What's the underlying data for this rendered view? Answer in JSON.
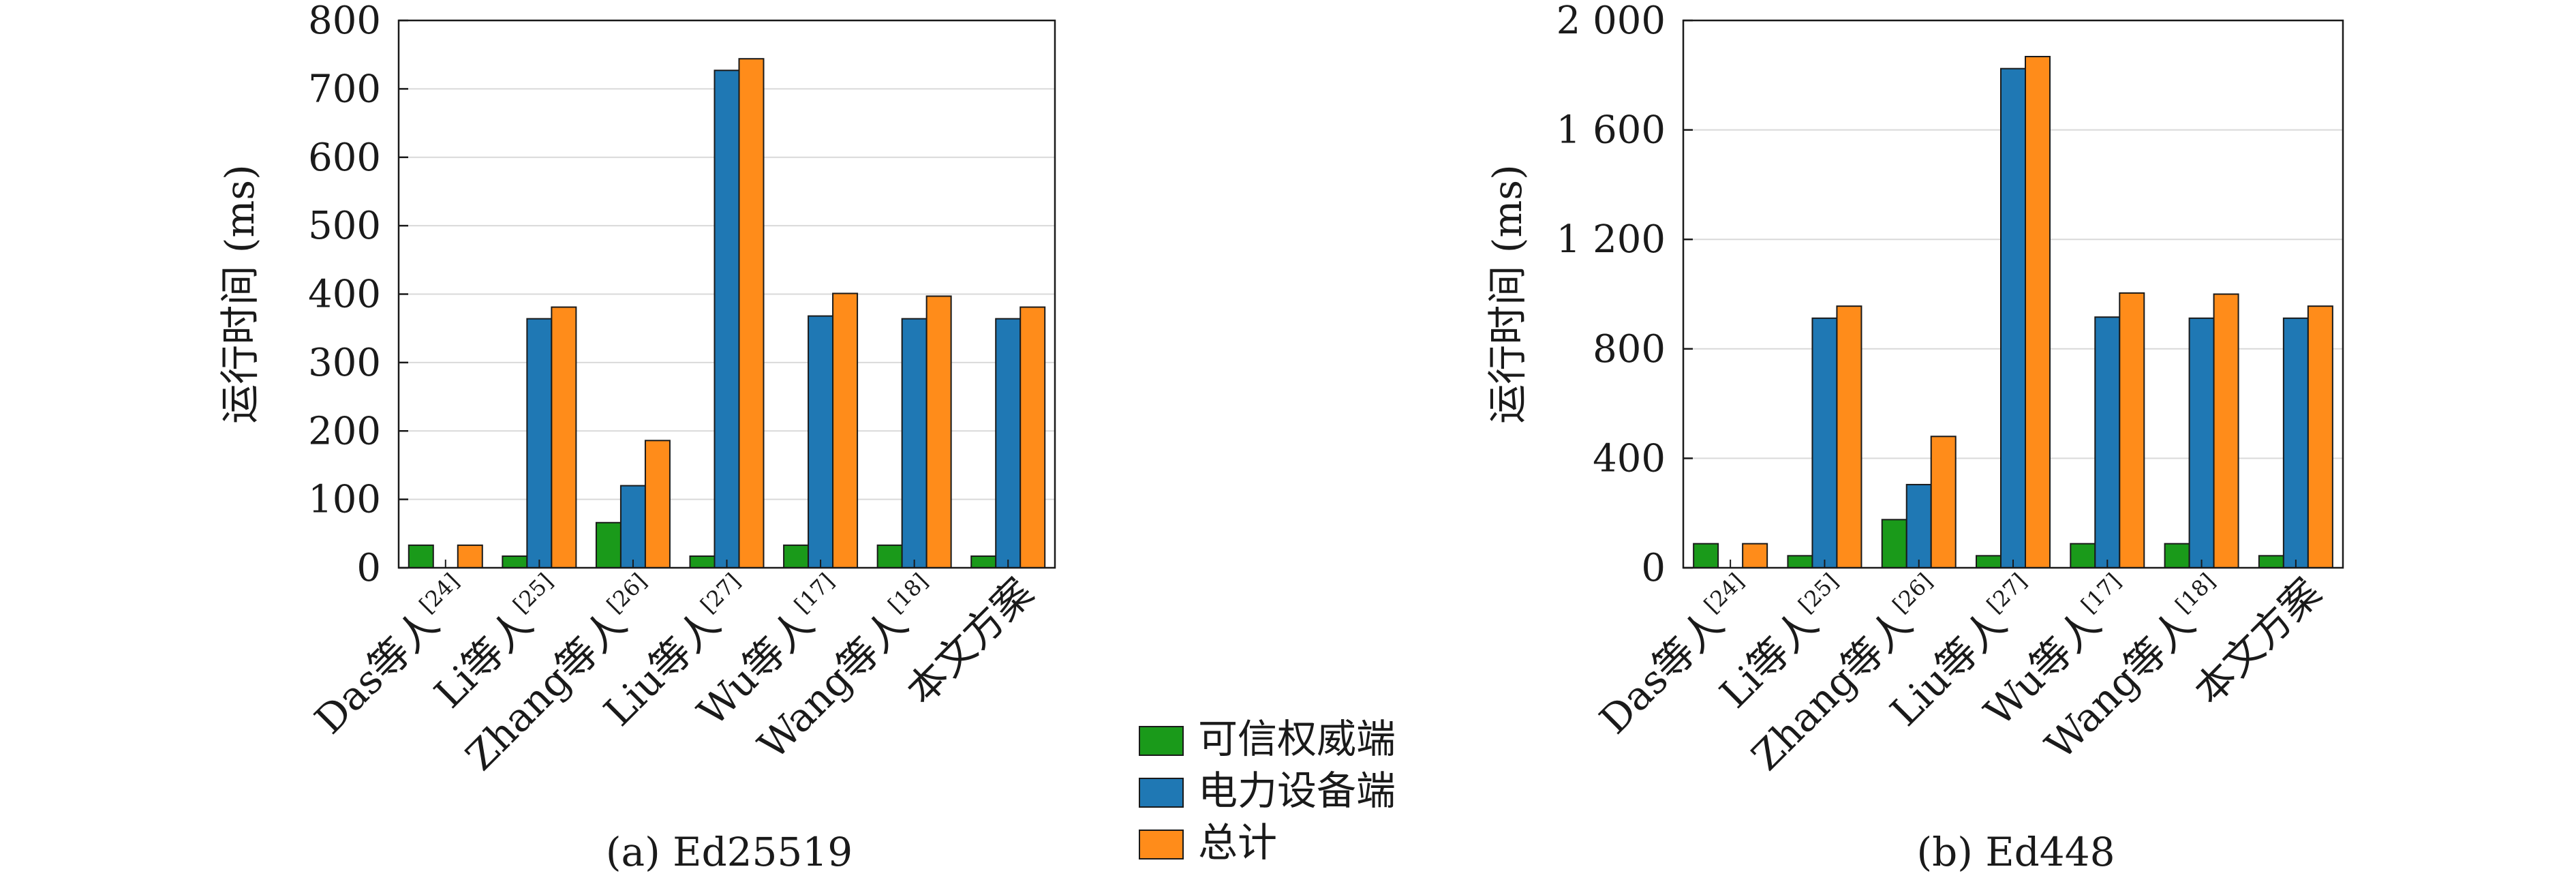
{
  "chart_data": [
    {
      "type": "bar",
      "caption": "(a) Ed25519",
      "ylabel": "运行时间 (ms)",
      "ylim": [
        0,
        800
      ],
      "yticks": [
        0,
        100,
        200,
        300,
        400,
        500,
        600,
        700,
        800
      ],
      "ytick_labels": [
        "0",
        "100",
        "200",
        "300",
        "400",
        "500",
        "600",
        "700",
        "800"
      ],
      "grid": true,
      "categories": [
        {
          "label": "Das等人",
          "ref": "[24]"
        },
        {
          "label": "Li等人",
          "ref": "[25]"
        },
        {
          "label": "Zhang等人",
          "ref": "[26]"
        },
        {
          "label": "Liu等人",
          "ref": "[27]"
        },
        {
          "label": "Wu等人",
          "ref": "[17]"
        },
        {
          "label": "Wang等人",
          "ref": "[18]"
        },
        {
          "label": "本文方案",
          "ref": ""
        }
      ],
      "series": [
        {
          "name": "可信权威端",
          "color": "#1a9a1a",
          "values": [
            33,
            17,
            66,
            17,
            33,
            33,
            17
          ]
        },
        {
          "name": "电力设备端",
          "color": "#1f78b4",
          "values": [
            0,
            364,
            120,
            727,
            368,
            364,
            364
          ]
        },
        {
          "name": "总计",
          "color": "#ff8c1a",
          "values": [
            33,
            381,
            186,
            744,
            401,
            397,
            381
          ]
        }
      ]
    },
    {
      "type": "bar",
      "caption": "(b) Ed448",
      "ylabel": "运行时间 (ms)",
      "ylim": [
        0,
        2000
      ],
      "yticks": [
        0,
        400,
        800,
        1200,
        1600,
        2000
      ],
      "ytick_labels": [
        "0",
        "400",
        "800",
        "1 200",
        "1 600",
        "2 000"
      ],
      "grid": true,
      "categories": [
        {
          "label": "Das等人",
          "ref": "[24]"
        },
        {
          "label": "Li等人",
          "ref": "[25]"
        },
        {
          "label": "Zhang等人",
          "ref": "[26]"
        },
        {
          "label": "Liu等人",
          "ref": "[27]"
        },
        {
          "label": "Wu等人",
          "ref": "[17]"
        },
        {
          "label": "Wang等人",
          "ref": "[18]"
        },
        {
          "label": "本文方案",
          "ref": ""
        }
      ],
      "series": [
        {
          "name": "可信权威端",
          "color": "#1a9a1a",
          "values": [
            88,
            44,
            176,
            44,
            88,
            88,
            44
          ]
        },
        {
          "name": "电力设备端",
          "color": "#1f78b4",
          "values": [
            0,
            912,
            304,
            1824,
            916,
            912,
            912
          ]
        },
        {
          "name": "总计",
          "color": "#ff8c1a",
          "values": [
            88,
            956,
            480,
            1868,
            1004,
            1000,
            956
          ]
        }
      ]
    }
  ],
  "legend": {
    "placement": "bottom-center",
    "items": [
      {
        "label": "可信权威端",
        "color": "#1a9a1a"
      },
      {
        "label": "电力设备端",
        "color": "#1f78b4"
      },
      {
        "label": "总计",
        "color": "#ff8c1a"
      }
    ]
  }
}
